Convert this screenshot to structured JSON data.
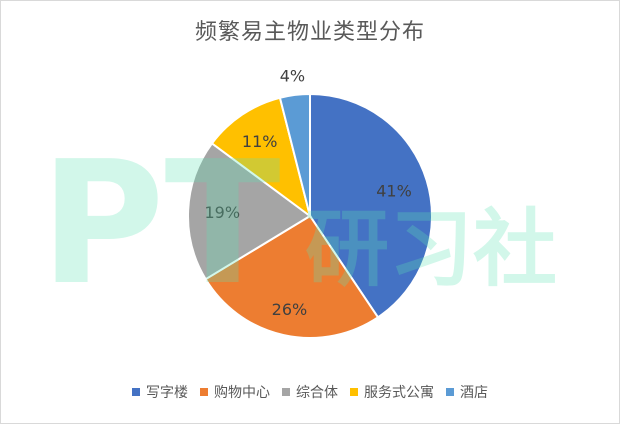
{
  "chart_data": {
    "type": "pie",
    "title": "频繁易主物业类型分布",
    "categories": [
      "写字楼",
      "购物中心",
      "综合体",
      "服务式公寓",
      "酒店"
    ],
    "values": [
      41,
      26,
      19,
      11,
      4
    ],
    "labels": [
      "41%",
      "26%",
      "19%",
      "11%",
      "4%"
    ],
    "colors": [
      "#4472C4",
      "#ED7D31",
      "#A5A5A5",
      "#FFC000",
      "#5B9BD5"
    ],
    "legend_position": "bottom"
  },
  "watermark": {
    "text_latin": "PT",
    "text_cjk": "研习社",
    "color": "#5DE3B4"
  }
}
